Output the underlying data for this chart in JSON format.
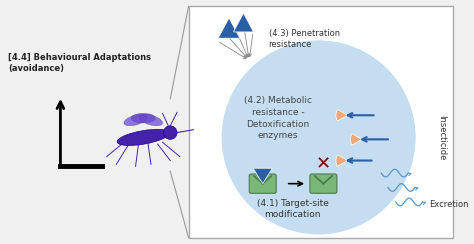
{
  "fig_width": 4.74,
  "fig_height": 2.44,
  "dpi": 100,
  "bg_color": "#f0f0f0",
  "box_bg": "#ffffff",
  "circle_color": "#c5ddf0",
  "text_42": "(4.2) Metabolic\nresistance -\nDetoxification\nenzymes",
  "text_41": "(4.1) Target-site\nmodification",
  "text_43": "(4.3) Penetration\nresistance",
  "text_44": "[4.4] Behavioural Adaptations\n(avoidance)",
  "text_insecticide": "Insecticide",
  "text_excretion": "Excretion",
  "blue_color": "#2a5fa5",
  "orange_color": "#f0a878",
  "green_color": "#7ab87a",
  "red_cross_color": "#8b0000",
  "dark_green": "#4a7a4a",
  "gray_line": "#999999"
}
